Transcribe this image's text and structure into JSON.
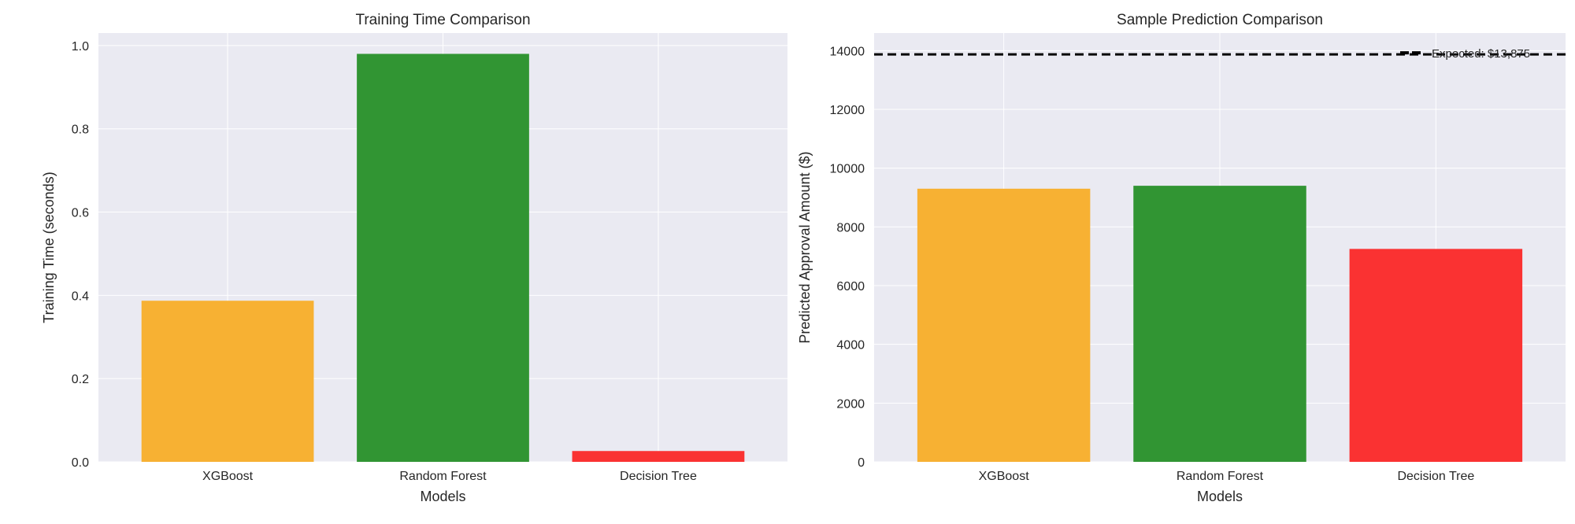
{
  "chart_data": [
    {
      "type": "bar",
      "title": "Training Time Comparison",
      "xlabel": "Models",
      "ylabel": "Training Time (seconds)",
      "categories": [
        "XGBoost",
        "Random Forest",
        "Decision Tree"
      ],
      "values": [
        0.387,
        0.98,
        0.026
      ],
      "colors": [
        "#f7b133",
        "#319533",
        "#fa3232"
      ],
      "ylim": [
        0,
        1.03
      ],
      "yticks": [
        0.0,
        0.2,
        0.4,
        0.6,
        0.8,
        1.0
      ],
      "ytick_labels": [
        "0.0",
        "0.2",
        "0.4",
        "0.6",
        "0.8",
        "1.0"
      ],
      "grid": true
    },
    {
      "type": "bar",
      "title": "Sample Prediction Comparison",
      "xlabel": "Models",
      "ylabel": "Predicted Approval Amount ($)",
      "categories": [
        "XGBoost",
        "Random Forest",
        "Decision Tree"
      ],
      "values": [
        9300,
        9400,
        7250
      ],
      "colors": [
        "#f7b133",
        "#319533",
        "#fa3232"
      ],
      "ylim": [
        0,
        14600
      ],
      "yticks": [
        0,
        2000,
        4000,
        6000,
        8000,
        10000,
        12000,
        14000
      ],
      "ytick_labels": [
        "0",
        "2000",
        "4000",
        "6000",
        "8000",
        "10000",
        "12000",
        "14000"
      ],
      "grid": true,
      "reference_line": {
        "value": 13875,
        "label": "Expected: $13,875",
        "style": "dashed",
        "color": "#000000"
      }
    }
  ],
  "colors": {
    "axes_background": "#eaeaf2",
    "grid": "#ffffff",
    "text": "#262626"
  }
}
